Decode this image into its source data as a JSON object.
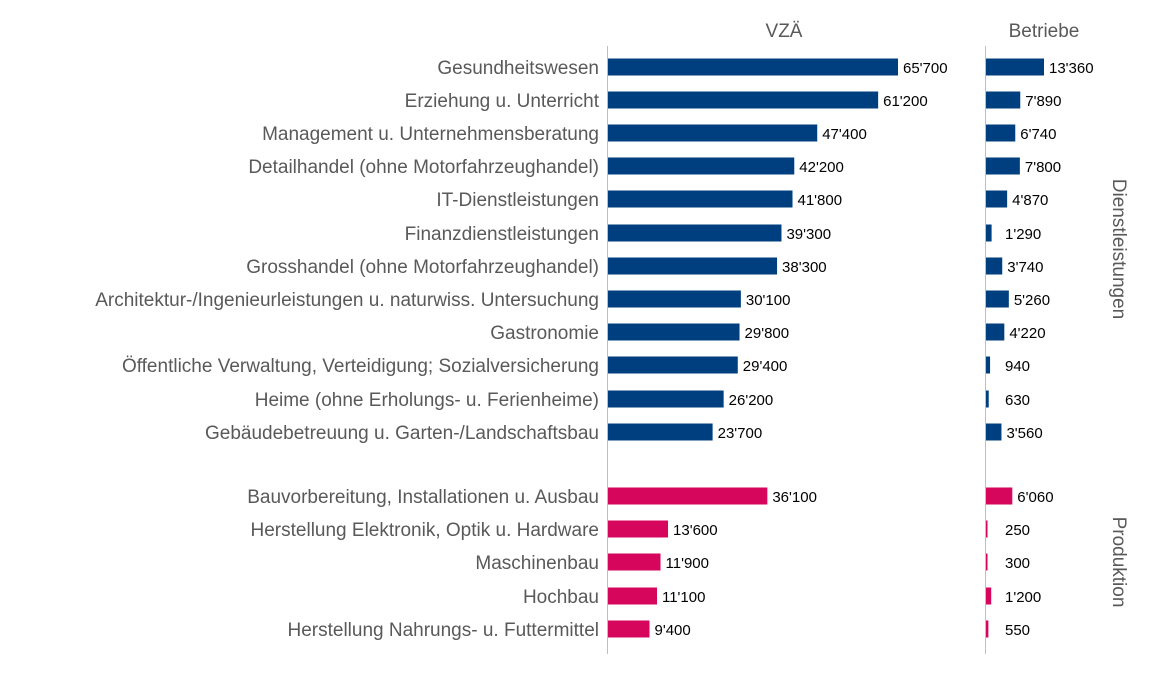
{
  "chart_data": {
    "type": "bar",
    "orientation": "horizontal",
    "headers": {
      "vza": "VZÄ",
      "betriebe": "Betriebe"
    },
    "colors": {
      "Dienstleistungen": "#003f7f",
      "Produktion": "#d5065b"
    },
    "groups": [
      {
        "name": "Dienstleistungen",
        "items": [
          {
            "category": "Gesundheitswesen",
            "vza": 65700,
            "vza_label": "65'700",
            "betriebe": 13360,
            "betriebe_label": "13'360"
          },
          {
            "category": "Erziehung u. Unterricht",
            "vza": 61200,
            "vza_label": "61'200",
            "betriebe": 7890,
            "betriebe_label": "7'890"
          },
          {
            "category": "Management u. Unternehmensberatung",
            "vza": 47400,
            "vza_label": "47'400",
            "betriebe": 6740,
            "betriebe_label": "6'740"
          },
          {
            "category": "Detailhandel (ohne Motorfahrzeughandel)",
            "vza": 42200,
            "vza_label": "42'200",
            "betriebe": 7800,
            "betriebe_label": "7'800"
          },
          {
            "category": "IT-Dienstleistungen",
            "vza": 41800,
            "vza_label": "41'800",
            "betriebe": 4870,
            "betriebe_label": "4'870"
          },
          {
            "category": "Finanzdienstleistungen",
            "vza": 39300,
            "vza_label": "39'300",
            "betriebe": 1290,
            "betriebe_label": "1'290"
          },
          {
            "category": "Grosshandel (ohne Motorfahrzeughandel)",
            "vza": 38300,
            "vza_label": "38'300",
            "betriebe": 3740,
            "betriebe_label": "3'740"
          },
          {
            "category": "Architektur-/Ingenieurleistungen u. naturwiss. Untersuchung",
            "vza": 30100,
            "vza_label": "30'100",
            "betriebe": 5260,
            "betriebe_label": "5'260"
          },
          {
            "category": "Gastronomie",
            "vza": 29800,
            "vza_label": "29'800",
            "betriebe": 4220,
            "betriebe_label": "4'220"
          },
          {
            "category": "Öffentliche Verwaltung, Verteidigung; Sozialversicherung",
            "vza": 29400,
            "vza_label": "29'400",
            "betriebe": 940,
            "betriebe_label": "940"
          },
          {
            "category": "Heime (ohne Erholungs- u. Ferienheime)",
            "vza": 26200,
            "vza_label": "26'200",
            "betriebe": 630,
            "betriebe_label": "630"
          },
          {
            "category": "Gebäudebetreuung u. Garten-/Landschaftsbau",
            "vza": 23700,
            "vza_label": "23'700",
            "betriebe": 3560,
            "betriebe_label": "3'560"
          }
        ]
      },
      {
        "name": "Produktion",
        "items": [
          {
            "category": "Bauvorbereitung, Installationen u. Ausbau",
            "vza": 36100,
            "vza_label": "36'100",
            "betriebe": 6060,
            "betriebe_label": "6'060"
          },
          {
            "category": "Herstellung Elektronik, Optik u. Hardware",
            "vza": 13600,
            "vza_label": "13'600",
            "betriebe": 250,
            "betriebe_label": "250"
          },
          {
            "category": "Maschinenbau",
            "vza": 11900,
            "vza_label": "11'900",
            "betriebe": 300,
            "betriebe_label": "300"
          },
          {
            "category": "Hochbau",
            "vza": 11100,
            "vza_label": "11'100",
            "betriebe": 1200,
            "betriebe_label": "1'200"
          },
          {
            "category": "Herstellung Nahrungs- u. Futtermittel",
            "vza": 9400,
            "vza_label": "9'400",
            "betriebe": 550,
            "betriebe_label": "550"
          }
        ]
      }
    ]
  }
}
